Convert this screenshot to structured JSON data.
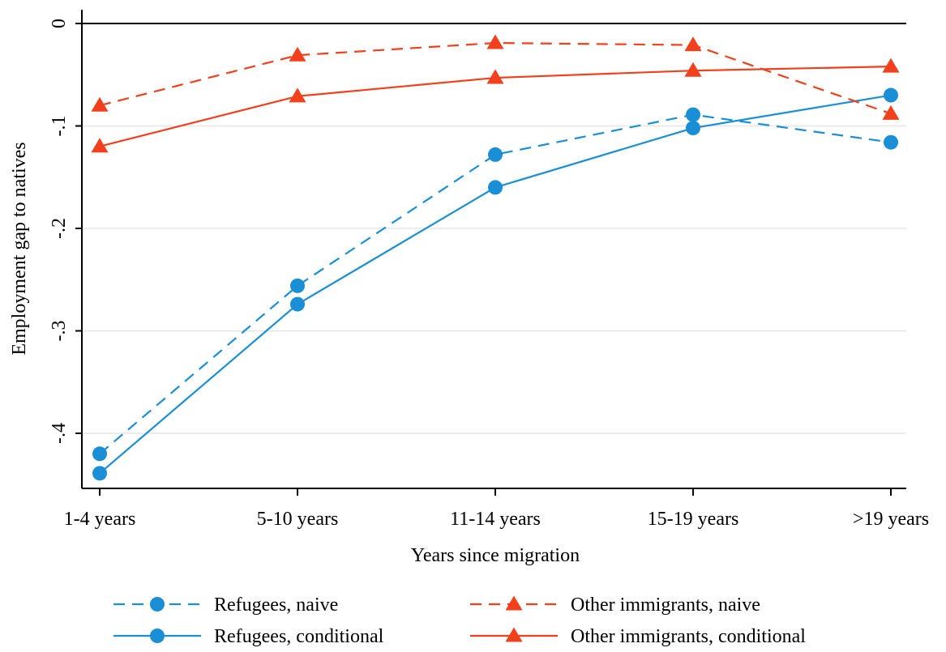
{
  "chart_data": {
    "type": "line",
    "title": "",
    "xlabel": "Years since migration",
    "ylabel": "Employment gap to natives",
    "categories": [
      "1-4 years",
      "5-10 years",
      "11-14 years",
      "15-19 years",
      ">19 years"
    ],
    "y_ticks": [
      0,
      -0.1,
      -0.2,
      -0.3,
      -0.4
    ],
    "y_tick_labels": [
      "0",
      "-.1",
      "-.2",
      "-.3",
      "-.4"
    ],
    "ylim": [
      -0.45,
      0.01
    ],
    "grid": true,
    "reference_line": 0,
    "legend_position": "bottom",
    "series": [
      {
        "name": "Refugees, naive",
        "values": [
          -0.42,
          -0.256,
          -0.128,
          -0.089,
          -0.116
        ],
        "color": "#1a8fd6",
        "dash": "dashed",
        "marker": "circle"
      },
      {
        "name": "Refugees, conditional",
        "values": [
          -0.439,
          -0.274,
          -0.16,
          -0.102,
          -0.07
        ],
        "color": "#1a8fd6",
        "dash": "solid",
        "marker": "circle"
      },
      {
        "name": "Other immigrants, naive",
        "values": [
          -0.08,
          -0.031,
          -0.019,
          -0.021,
          -0.088
        ],
        "color": "#f2401c",
        "dash": "dashed",
        "marker": "triangle"
      },
      {
        "name": "Other immigrants, conditional",
        "values": [
          -0.12,
          -0.071,
          -0.053,
          -0.046,
          -0.042
        ],
        "color": "#f2401c",
        "dash": "solid",
        "marker": "triangle"
      }
    ],
    "legend_order": [
      0,
      2,
      1,
      3
    ]
  }
}
